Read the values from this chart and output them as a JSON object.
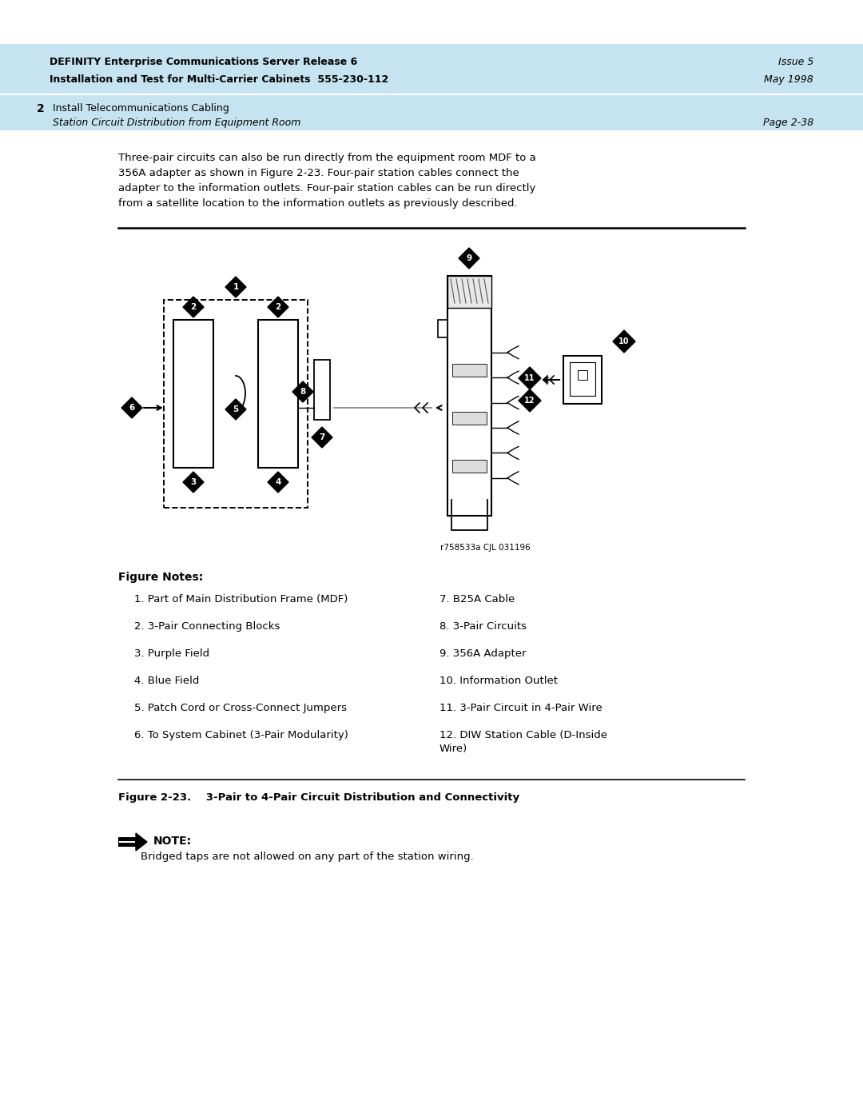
{
  "bg_color": "#ffffff",
  "header_bg": "#c5e3f0",
  "header_line1_bold": "DEFINITY Enterprise Communications Server Release 6",
  "header_line2_bold": "Installation and Test for Multi-Carrier Cabinets  555-230-112",
  "header_right1": "Issue 5",
  "header_right2": "May 1998",
  "subheader_num": "2",
  "subheader_line1": "Install Telecommunications Cabling",
  "subheader_line2": "Station Circuit Distribution from Equipment Room",
  "subheader_right": "Page 2-38",
  "body_text_lines": [
    "Three-pair circuits can also be run directly from the equipment room MDF to a",
    "356A adapter as shown in Figure 2-23. Four-pair station cables connect the",
    "adapter to the information outlets. Four-pair station cables can be run directly",
    "from a satellite location to the information outlets as previously described."
  ],
  "image_credit": "r758533a CJL 031196",
  "figure_notes_title": "Figure Notes:",
  "figure_notes_left": [
    "1. Part of Main Distribution Frame (MDF)",
    "2. 3-Pair Connecting Blocks",
    "3. Purple Field",
    "4. Blue Field",
    "5. Patch Cord or Cross-Connect Jumpers",
    "6. To System Cabinet (3-Pair Modularity)"
  ],
  "figure_notes_right": [
    "7. B25A Cable",
    "8. 3-Pair Circuits",
    "9. 356A Adapter",
    "10. Information Outlet",
    "11. 3-Pair Circuit in 4-Pair Wire",
    "12. DIW Station Cable (D-Inside\n       Wire)"
  ],
  "figure_caption": "Figure 2-23.    3-Pair to 4-Pair Circuit Distribution and Connectivity",
  "note_title": "NOTE:",
  "note_text": "Bridged taps are not allowed on any part of the station wiring."
}
